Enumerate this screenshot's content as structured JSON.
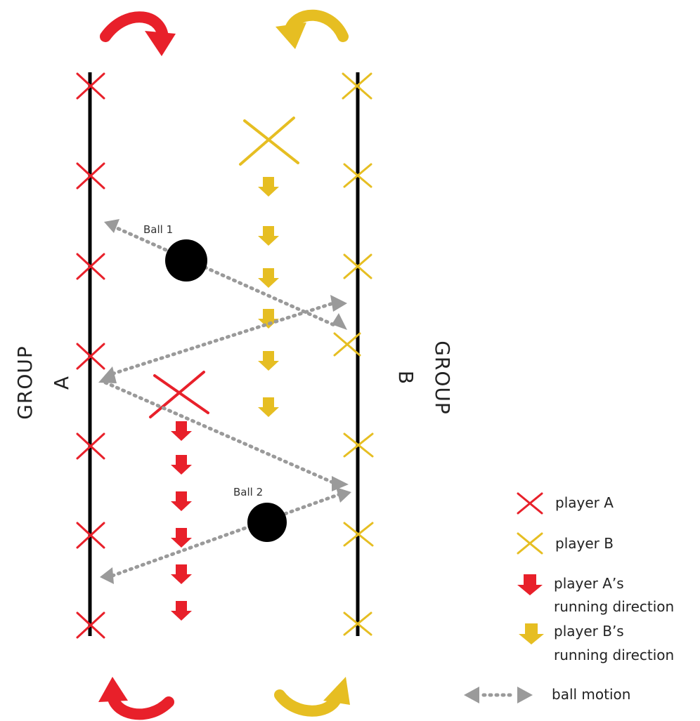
{
  "colors": {
    "player_a": "#e8202a",
    "player_b": "#e6be22",
    "ball": "#000000",
    "ball_motion": "#9a9a9a",
    "line": "#000000"
  },
  "groups": {
    "a": {
      "word": "GROUP",
      "letter": "A"
    },
    "b": {
      "word": "GROUP",
      "letter": "B"
    }
  },
  "balls": [
    {
      "label": "Ball 1"
    },
    {
      "label": "Ball 2"
    }
  ],
  "legend": {
    "player_a": "player A",
    "player_b": "player B",
    "run_a_line1": "player A’s",
    "run_a_line2": "running direction",
    "run_b_line1": "player B’s",
    "run_b_line2": "running direction",
    "ball_motion": "ball motion"
  }
}
